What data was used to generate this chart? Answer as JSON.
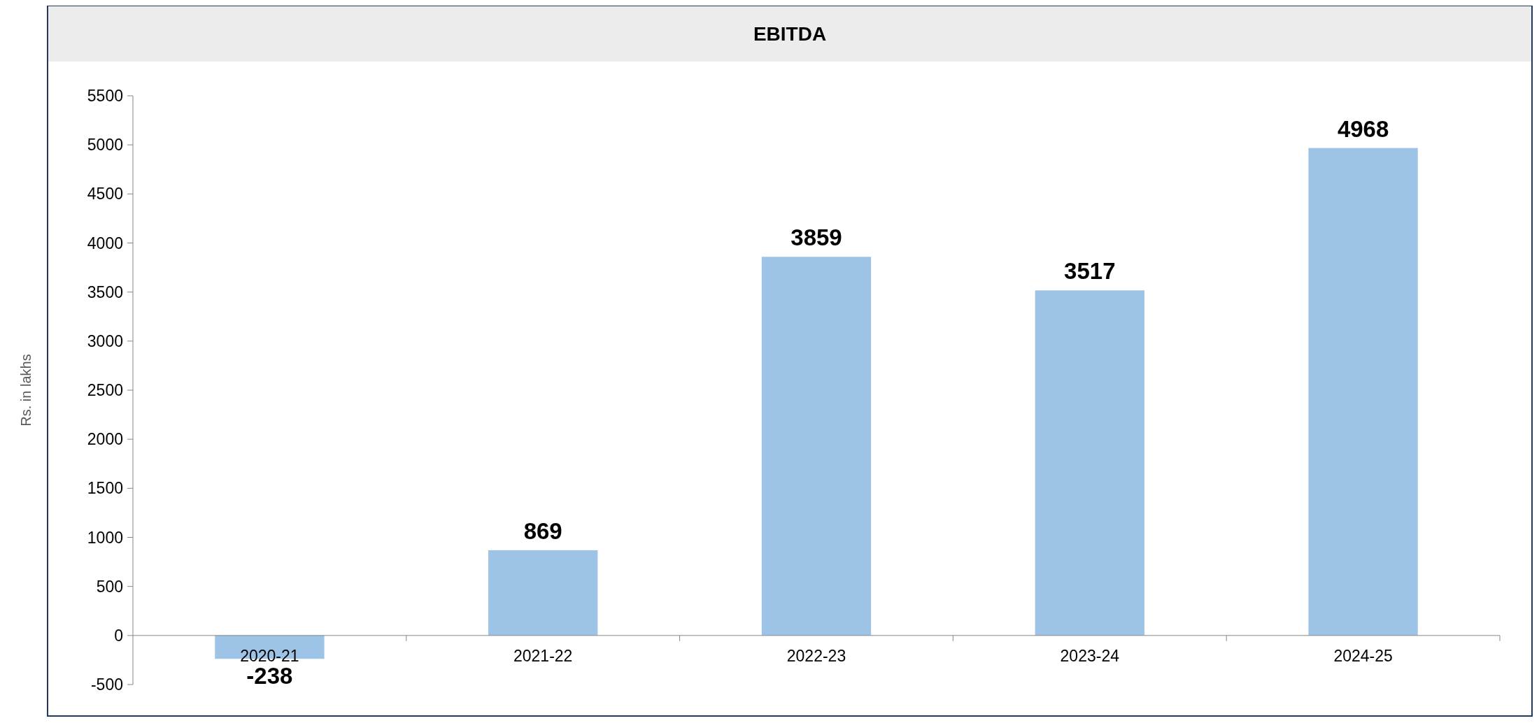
{
  "chart_data": {
    "type": "bar",
    "title": "EBITDA",
    "ylabel": "Rs. in lakhs",
    "categories": [
      "2020-21",
      "2021-22",
      "2022-23",
      "2023-24",
      "2024-25"
    ],
    "values": [
      -238,
      869,
      3859,
      3517,
      4968
    ],
    "color": "#9dc3e6",
    "ylim": [
      -500,
      5500
    ],
    "yticks": [
      -500,
      0,
      500,
      1000,
      1500,
      2000,
      2500,
      3000,
      3500,
      4000,
      4500,
      5000,
      5500
    ],
    "data_labels": true
  }
}
